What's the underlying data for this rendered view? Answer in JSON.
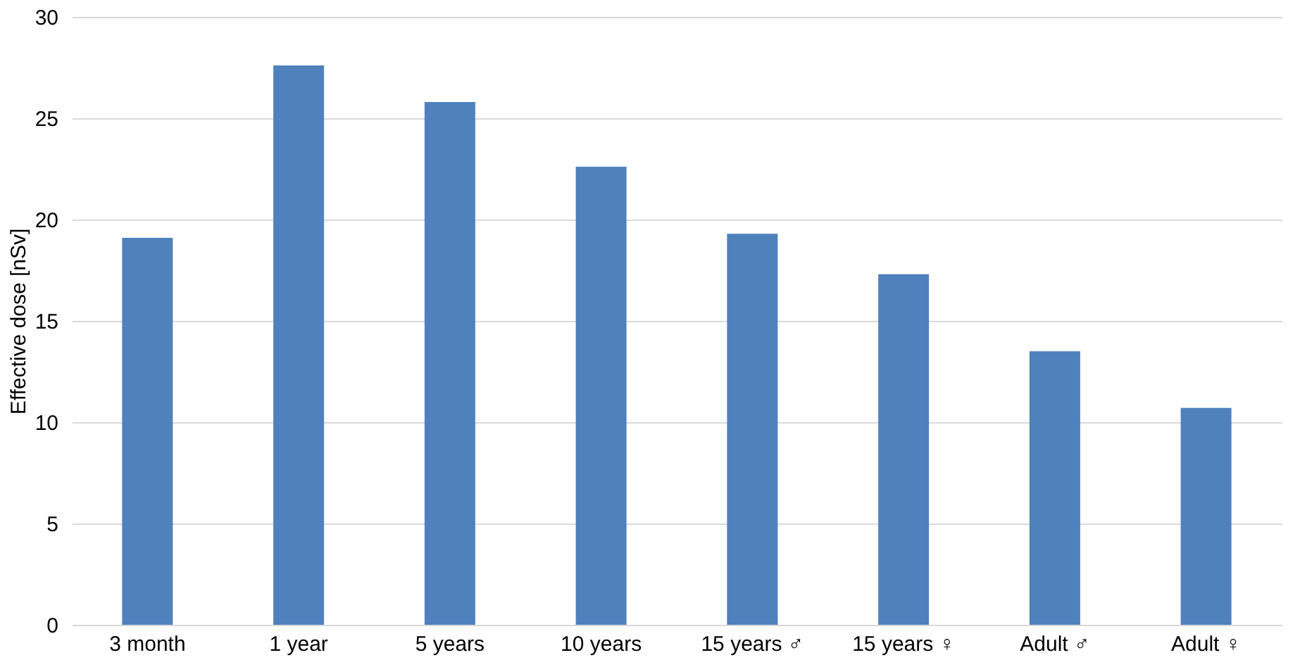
{
  "chart_data": {
    "type": "bar",
    "ylabel": "Effective dose [nSv]",
    "categories": [
      "3 month",
      "1 year",
      "5 years",
      "10 years",
      "15 years ♂",
      "15 years ♀",
      "Adult ♂",
      "Adult ♀"
    ],
    "values": [
      19.1,
      27.6,
      25.8,
      22.6,
      19.3,
      17.3,
      13.5,
      10.7
    ],
    "color": "#4f81bd",
    "ylim": [
      0,
      30
    ],
    "yticks": [
      0,
      5,
      10,
      15,
      20,
      25,
      30
    ],
    "grid": "y"
  }
}
